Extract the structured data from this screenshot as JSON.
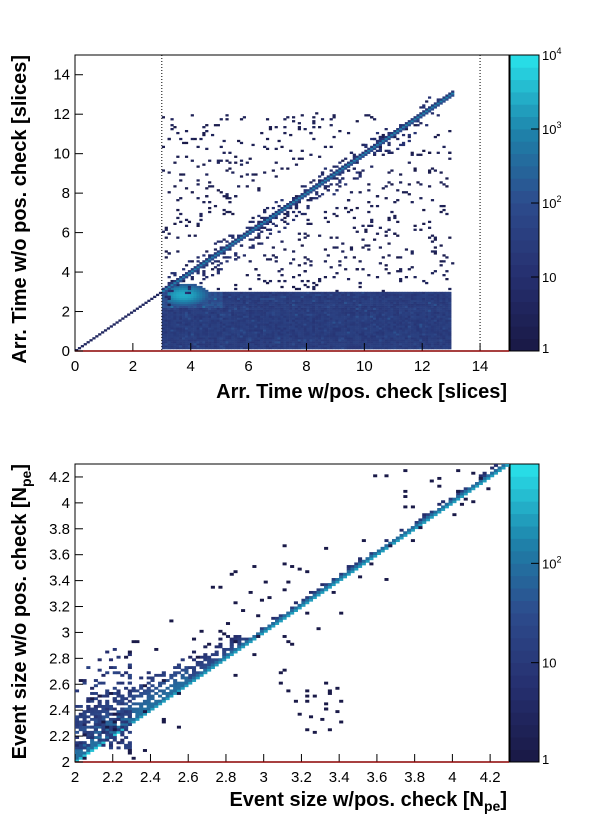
{
  "chart_data": [
    {
      "type": "heatmap",
      "xlabel": "Arr. Time w/pos. check [slices]",
      "ylabel": "Arr. Time w/o pos. check [slices]",
      "xlim": [
        0,
        15
      ],
      "ylim": [
        0,
        15
      ],
      "xticks": [
        "0",
        "2",
        "4",
        "6",
        "8",
        "10",
        "12",
        "14"
      ],
      "yticks": [
        "0",
        "2",
        "4",
        "6",
        "8",
        "10",
        "12",
        "14"
      ],
      "reference_lines_x": [
        3,
        14
      ],
      "colorbar": {
        "scale": "log",
        "range": [
          1,
          10000
        ],
        "labels": [
          {
            "value": 1,
            "base": "1",
            "exp": ""
          },
          {
            "value": 10,
            "base": "10",
            "exp": ""
          },
          {
            "value": 100,
            "base": "10",
            "exp": "2"
          },
          {
            "value": 1000,
            "base": "10",
            "exp": "3"
          },
          {
            "value": 10000,
            "base": "10",
            "exp": "4"
          }
        ]
      },
      "regions": [
        {
          "name": "diagonal",
          "from": [
            0,
            0
          ],
          "to": [
            13,
            13
          ],
          "count": 1000
        },
        {
          "name": "main block",
          "x_range": [
            3,
            12.9
          ],
          "y_range": [
            0.1,
            3
          ],
          "count": 30
        },
        {
          "name": "hot spot",
          "x_range": [
            3.2,
            4.6
          ],
          "y_range": [
            2.3,
            3.6
          ],
          "count": 3000
        },
        {
          "name": "scatter",
          "x_range": [
            3,
            13
          ],
          "y_range": [
            3,
            12
          ],
          "count": 1
        }
      ]
    },
    {
      "type": "heatmap",
      "xlabel": "Event size w/pos. check [N",
      "xlabel_sub": "pe",
      "xlabel_end": "]",
      "ylabel": "Event size w/o pos. check [N",
      "ylabel_sub": "pe",
      "ylabel_end": "]",
      "xlim": [
        2,
        4.3
      ],
      "ylim": [
        2,
        4.3
      ],
      "xticks": [
        "2",
        "2.2",
        "2.4",
        "2.6",
        "2.8",
        "3",
        "3.2",
        "3.4",
        "3.6",
        "3.8",
        "4",
        "4.2"
      ],
      "yticks": [
        "2",
        "2.2",
        "2.4",
        "2.6",
        "2.8",
        "3",
        "3.2",
        "3.4",
        "3.6",
        "3.8",
        "4",
        "4.2"
      ],
      "colorbar": {
        "scale": "log",
        "range": [
          1,
          1000
        ],
        "labels": [
          {
            "value": 1,
            "base": "1",
            "exp": ""
          },
          {
            "value": 10,
            "base": "10",
            "exp": ""
          },
          {
            "value": 100,
            "base": "10",
            "exp": "2"
          }
        ]
      },
      "regions": [
        {
          "name": "diagonal",
          "from": [
            2,
            2
          ],
          "to": [
            4.3,
            4.3
          ],
          "count": 600
        },
        {
          "name": "upper band",
          "offset_range": [
            0.02,
            0.35
          ],
          "count": 20
        },
        {
          "name": "outliers",
          "x_range": [
            2,
            4.2
          ],
          "y_range": [
            2,
            4.2
          ],
          "count": 1
        }
      ]
    }
  ]
}
